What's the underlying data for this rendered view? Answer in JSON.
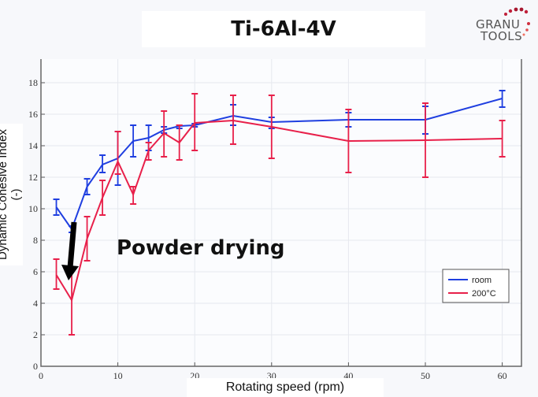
{
  "logo_text": [
    "GRANU",
    "TOOLS"
  ],
  "chart_data": {
    "type": "line",
    "title": "Ti-6Al-4V",
    "xlabel": "Rotating speed (rpm)",
    "ylabel": "Dynamic Cohesive Index (-)",
    "xlim": [
      0,
      62.5
    ],
    "ylim": [
      0,
      19.5
    ],
    "xticks": [
      0,
      10,
      20,
      30,
      40,
      50,
      60
    ],
    "yticks": [
      0,
      2,
      4,
      6,
      8,
      10,
      12,
      14,
      16,
      18
    ],
    "grid": true,
    "legend_position": "bottom-right",
    "annotation": "Powder drying",
    "x": [
      2,
      4,
      6,
      8,
      10,
      12,
      14,
      16,
      18,
      20,
      25,
      30,
      40,
      50,
      60
    ],
    "series": [
      {
        "name": "room",
        "color": "#1f3fe0",
        "values": [
          10.1,
          8.7,
          11.4,
          12.8,
          13.2,
          14.3,
          14.5,
          15.0,
          15.25,
          15.3,
          15.9,
          15.5,
          15.65,
          15.65,
          17.0
        ],
        "err_low": [
          9.6,
          8.5,
          10.9,
          12.3,
          11.5,
          13.3,
          13.7,
          14.8,
          15.1,
          15.2,
          15.3,
          15.1,
          15.2,
          14.75,
          16.45
        ],
        "err_high": [
          10.6,
          8.9,
          11.9,
          13.4,
          14.9,
          15.3,
          15.3,
          15.2,
          15.3,
          15.4,
          16.6,
          15.8,
          16.1,
          16.5,
          17.5
        ]
      },
      {
        "name": "200°C",
        "color": "#e8204a",
        "values": [
          5.8,
          4.2,
          8.1,
          10.7,
          13.0,
          10.9,
          13.7,
          14.8,
          14.2,
          15.45,
          15.6,
          15.2,
          14.3,
          14.35,
          14.45
        ],
        "err_low": [
          4.9,
          2.0,
          6.7,
          9.6,
          12.2,
          10.3,
          13.1,
          13.3,
          13.1,
          13.7,
          14.1,
          13.2,
          12.3,
          12.0,
          13.3
        ],
        "err_high": [
          6.8,
          6.1,
          9.5,
          11.8,
          14.9,
          11.4,
          14.2,
          16.2,
          15.3,
          17.3,
          17.2,
          17.2,
          16.3,
          16.7,
          15.6
        ]
      }
    ]
  }
}
